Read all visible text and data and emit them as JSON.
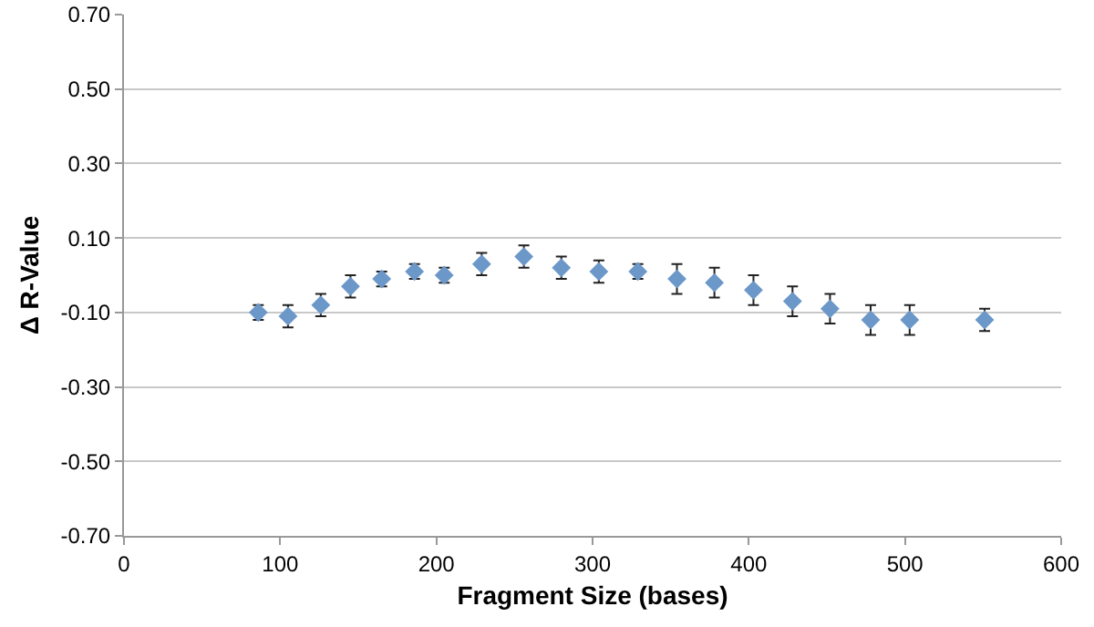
{
  "chart_data": {
    "type": "scatter",
    "xlabel": "Fragment Size (bases)",
    "ylabel": "Δ R-Value",
    "x": [
      86,
      105,
      126,
      145,
      165,
      186,
      205,
      229,
      256,
      280,
      304,
      329,
      354,
      378,
      403,
      428,
      452,
      478,
      503,
      551
    ],
    "values": [
      -0.1,
      -0.11,
      -0.08,
      -0.03,
      -0.01,
      0.01,
      0.0,
      0.03,
      0.05,
      0.02,
      0.01,
      0.01,
      -0.01,
      -0.02,
      -0.04,
      -0.07,
      -0.09,
      -0.12,
      -0.12,
      -0.12
    ],
    "errors": [
      0.02,
      0.03,
      0.03,
      0.03,
      0.02,
      0.02,
      0.02,
      0.03,
      0.03,
      0.03,
      0.03,
      0.02,
      0.04,
      0.04,
      0.04,
      0.04,
      0.04,
      0.04,
      0.04,
      0.03
    ],
    "color": "#6b97c9",
    "marker": "diamond",
    "xlim": [
      0,
      600
    ],
    "xticks": [
      0,
      100,
      200,
      300,
      400,
      500,
      600
    ],
    "ylim": [
      -0.7,
      0.7
    ],
    "yticks": [
      {
        "value": -0.7,
        "label": "-0.70"
      },
      {
        "value": -0.5,
        "label": "-0.50"
      },
      {
        "value": -0.3,
        "label": "-0.30"
      },
      {
        "value": -0.1,
        "label": "-0.10"
      },
      {
        "value": 0.1,
        "label": "0.10"
      },
      {
        "value": 0.3,
        "label": "0.30"
      },
      {
        "value": 0.5,
        "label": "0.50"
      },
      {
        "value": 0.7,
        "label": "0.70"
      }
    ],
    "grid": "y"
  }
}
